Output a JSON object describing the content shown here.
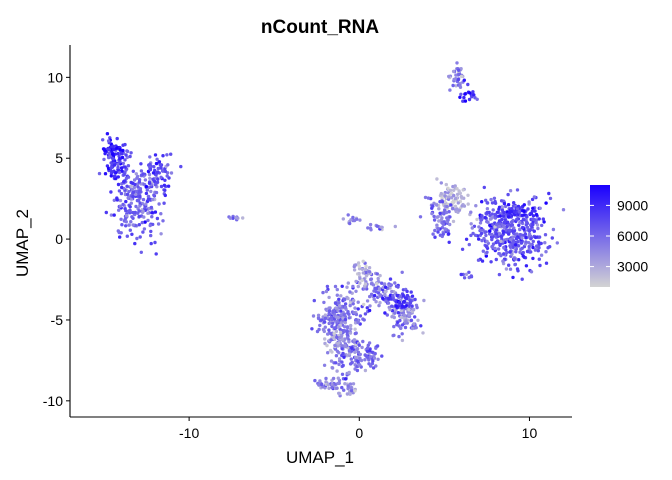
{
  "chart_data": {
    "type": "scatter",
    "title": "nCount_RNA",
    "xlabel": "UMAP_1",
    "ylabel": "UMAP_2",
    "xlim": [
      -17,
      12.5
    ],
    "ylim": [
      -11,
      12
    ],
    "xticks": [
      -10,
      0,
      10
    ],
    "xtick_labels": [
      "-10",
      "0",
      "10"
    ],
    "yticks": [
      -10,
      -5,
      0,
      5,
      10
    ],
    "ytick_labels": [
      "-10",
      "-5",
      "0",
      "5",
      "10"
    ],
    "grid": false,
    "legend": {
      "placement": "right",
      "type": "colorbar",
      "range": [
        1000,
        11000
      ],
      "ticks": [
        3000,
        6000,
        9000
      ],
      "tick_labels": [
        "3000",
        "6000",
        "9000"
      ],
      "low_color": "#d3d3d3",
      "high_color": "#1a00ff"
    },
    "clusters": [
      {
        "cx": -13,
        "cy": 2.3,
        "sx": 0.7,
        "sy": 1.2,
        "n": 230,
        "v": 6200
      },
      {
        "cx": -14.3,
        "cy": 4.5,
        "sx": 0.35,
        "sy": 0.8,
        "n": 90,
        "v": 8500
      },
      {
        "cx": -14.5,
        "cy": 5.6,
        "sx": 0.5,
        "sy": 0.2,
        "n": 40,
        "v": 9500
      },
      {
        "cx": -11.8,
        "cy": 4.1,
        "sx": 0.4,
        "sy": 0.5,
        "n": 60,
        "v": 7800
      },
      {
        "cx": -7.3,
        "cy": 1.3,
        "sx": 0.3,
        "sy": 0.06,
        "n": 10,
        "v": 4500
      },
      {
        "cx": 5.8,
        "cy": 10.2,
        "sx": 0.3,
        "sy": 0.4,
        "n": 35,
        "v": 5000
      },
      {
        "cx": 6.3,
        "cy": 9.0,
        "sx": 0.4,
        "sy": 0.3,
        "n": 20,
        "v": 8500
      },
      {
        "cx": -0.3,
        "cy": 1.2,
        "sx": 0.25,
        "sy": 0.15,
        "n": 12,
        "v": 4000
      },
      {
        "cx": 1.0,
        "cy": 0.8,
        "sx": 0.4,
        "sy": 0.15,
        "n": 12,
        "v": 5000
      },
      {
        "cx": 5.5,
        "cy": 2.4,
        "sx": 0.55,
        "sy": 0.5,
        "n": 90,
        "v": 2500
      },
      {
        "cx": 4.8,
        "cy": 1.2,
        "sx": 0.4,
        "sy": 0.6,
        "n": 60,
        "v": 6000
      },
      {
        "cx": 8.8,
        "cy": 0.3,
        "sx": 1.1,
        "sy": 1.0,
        "n": 420,
        "v": 6800
      },
      {
        "cx": 9.5,
        "cy": 1.6,
        "sx": 0.7,
        "sy": 0.3,
        "n": 80,
        "v": 8800
      },
      {
        "cx": 6.3,
        "cy": -2.2,
        "sx": 0.15,
        "sy": 0.15,
        "n": 8,
        "v": 6000
      },
      {
        "cx": -1.2,
        "cy": -4.8,
        "sx": 0.7,
        "sy": 0.8,
        "n": 200,
        "v": 5500
      },
      {
        "cx": 1.2,
        "cy": -3.2,
        "sx": 0.6,
        "sy": 0.5,
        "n": 80,
        "v": 5500
      },
      {
        "cx": 0.3,
        "cy": -2.2,
        "sx": 0.5,
        "sy": 0.35,
        "n": 45,
        "v": 3500
      },
      {
        "cx": 2.7,
        "cy": -4.7,
        "sx": 0.5,
        "sy": 0.6,
        "n": 110,
        "v": 5000
      },
      {
        "cx": 2.5,
        "cy": -3.8,
        "sx": 0.4,
        "sy": 0.3,
        "n": 40,
        "v": 8200
      },
      {
        "cx": -0.8,
        "cy": -7.0,
        "sx": 0.5,
        "sy": 0.8,
        "n": 110,
        "v": 5000
      },
      {
        "cx": 0.5,
        "cy": -7.3,
        "sx": 0.4,
        "sy": 0.5,
        "n": 45,
        "v": 6500
      },
      {
        "cx": -1.3,
        "cy": -6.2,
        "sx": 0.3,
        "sy": 0.3,
        "n": 25,
        "v": 2500
      },
      {
        "cx": -1.8,
        "cy": -9.0,
        "sx": 0.5,
        "sy": 0.2,
        "n": 40,
        "v": 5000
      },
      {
        "cx": -0.6,
        "cy": -9.3,
        "sx": 0.3,
        "sy": 0.25,
        "n": 25,
        "v": 3500
      }
    ]
  }
}
